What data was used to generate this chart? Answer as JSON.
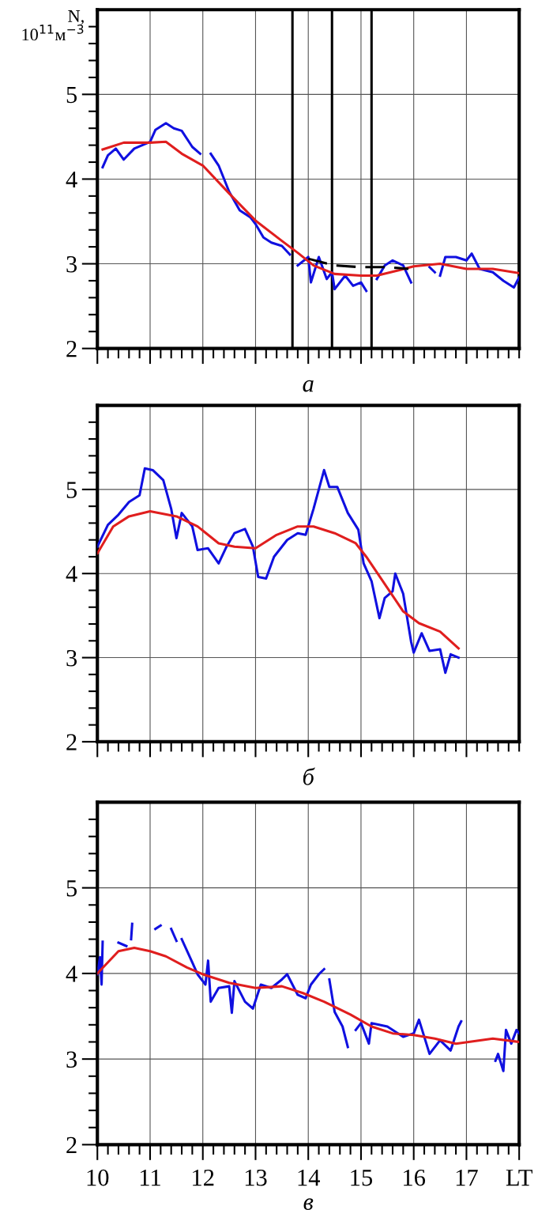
{
  "chart_data": [
    {
      "type": "line",
      "ylabel": "N,\n10$^{11}$м$^{−3}$",
      "xlabel": "а",
      "xlim": [
        10,
        18
      ],
      "ylim": [
        2,
        6
      ],
      "grid": true,
      "tick_labels": "y",
      "xticks": [
        10,
        {
          "value": 10.2,
          "label": null
        },
        {
          "value": 10.4,
          "label": null
        },
        {
          "value": 10.6,
          "label": null
        },
        {
          "value": 10.8,
          "label": null
        },
        11,
        {
          "value": 11.2,
          "label": null
        },
        {
          "value": 11.4,
          "label": null
        },
        {
          "value": 11.6,
          "label": null
        },
        {
          "value": 11.8,
          "label": null
        },
        12,
        {
          "value": 12.2,
          "label": null
        },
        {
          "value": 12.4,
          "label": null
        },
        {
          "value": 12.6,
          "label": null
        },
        {
          "value": 12.8,
          "label": null
        },
        13,
        {
          "value": 13.2,
          "label": null
        },
        {
          "value": 13.4,
          "label": null
        },
        {
          "value": 13.6,
          "label": null
        },
        {
          "value": 13.8,
          "label": null
        },
        14,
        {
          "value": 14.2,
          "label": null
        },
        {
          "value": 14.4,
          "label": null
        },
        {
          "value": 14.6,
          "label": null
        },
        {
          "value": 14.8,
          "label": null
        },
        15,
        {
          "value": 15.2,
          "label": null
        },
        {
          "value": 15.4,
          "label": null
        },
        {
          "value": 15.6,
          "label": null
        },
        {
          "value": 15.8,
          "label": null
        },
        16,
        {
          "value": 16.2,
          "label": null
        },
        {
          "value": 16.4,
          "label": null
        },
        {
          "value": 16.6,
          "label": null
        },
        {
          "value": 16.8,
          "label": null
        },
        17,
        {
          "value": 17.2,
          "label": null
        },
        {
          "value": 17.4,
          "label": null
        },
        {
          "value": 17.6,
          "label": null
        },
        {
          "value": 17.8,
          "label": null
        },
        {
          "value": 18,
          "label": null
        }
      ],
      "yticks": [
        2,
        {
          "value": 2.2,
          "label": null
        },
        {
          "value": 2.4,
          "label": null
        },
        {
          "value": 2.6,
          "label": null
        },
        {
          "value": 2.8,
          "label": null
        },
        3,
        {
          "value": 3.2,
          "label": null
        },
        {
          "value": 3.4,
          "label": null
        },
        {
          "value": 3.6,
          "label": null
        },
        {
          "value": 3.8,
          "label": null
        },
        4,
        {
          "value": 4.2,
          "label": null
        },
        {
          "value": 4.4,
          "label": null
        },
        {
          "value": 4.6,
          "label": null
        },
        {
          "value": 4.8,
          "label": null
        },
        5,
        {
          "value": 5.2,
          "label": null
        },
        {
          "value": 5.4,
          "label": null
        },
        {
          "value": 5.6,
          "label": null
        },
        {
          "value": 5.8,
          "label": null
        }
      ],
      "ref_lines": [
        {
          "axis": "x",
          "value": 13.7,
          "color": "#000000"
        },
        {
          "axis": "x",
          "value": 14.45,
          "color": "#000000"
        },
        {
          "axis": "x",
          "value": 15.2,
          "color": "#000000"
        }
      ],
      "series": [
        {
          "color": "#1010e0",
          "x": [
            10.1,
            10.2,
            10.35,
            10.5,
            10.7,
            10.85,
            11.0,
            11.1,
            11.3,
            11.45,
            11.6,
            11.8,
            11.95,
            12.05,
            12.15,
            12.3,
            12.5,
            12.7,
            12.9,
            13.0,
            13.15,
            13.3,
            13.5,
            13.65,
            13.72,
            13.8,
            14.0,
            14.05,
            14.2,
            14.35,
            14.45,
            14.5,
            14.7,
            14.85,
            15.0,
            15.1,
            15.2,
            15.3,
            15.45,
            15.6,
            15.8,
            15.95,
            16.1,
            16.3,
            16.4,
            16.45,
            16.5,
            16.6,
            16.8,
            17.0,
            17.1,
            17.25,
            17.5,
            17.7,
            17.9,
            18.0
          ],
          "values": [
            4.14,
            4.28,
            4.36,
            4.23,
            4.36,
            4.4,
            4.44,
            4.58,
            4.66,
            4.6,
            4.57,
            4.38,
            4.3,
            null,
            4.3,
            4.16,
            3.85,
            3.63,
            3.55,
            3.47,
            3.31,
            3.25,
            3.21,
            3.11,
            null,
            2.98,
            3.08,
            2.78,
            3.08,
            2.82,
            2.9,
            2.7,
            2.86,
            2.74,
            2.78,
            2.68,
            null,
            2.82,
            2.98,
            3.04,
            2.98,
            2.78,
            null,
            2.96,
            2.9,
            null,
            2.86,
            3.08,
            3.08,
            3.04,
            3.12,
            2.94,
            2.9,
            2.8,
            2.72,
            2.84
          ]
        },
        {
          "color": "#e01e1e",
          "x": [
            10.1,
            10.5,
            11.0,
            11.3,
            11.6,
            12.0,
            12.5,
            13.0,
            13.5,
            13.8,
            14.1,
            14.5,
            15.0,
            15.3,
            15.7,
            16.0,
            16.5,
            17.0,
            17.5,
            18.0
          ],
          "values": [
            4.35,
            4.43,
            4.43,
            4.44,
            4.3,
            4.16,
            3.83,
            3.51,
            3.27,
            3.13,
            2.98,
            2.88,
            2.86,
            2.86,
            2.92,
            2.97,
            3.0,
            2.94,
            2.94,
            2.89
          ]
        },
        {
          "color": "#000000",
          "line_style": "dashed",
          "x": [
            14.0,
            14.5,
            15.0,
            15.5,
            15.9
          ],
          "values": [
            3.06,
            2.98,
            2.96,
            2.96,
            2.94
          ]
        }
      ]
    },
    {
      "type": "line",
      "xlabel": "б",
      "xlim": [
        10,
        18
      ],
      "ylim": [
        2,
        6
      ],
      "grid": true,
      "tick_labels": "y",
      "xticks": [
        10,
        {
          "value": 10.2,
          "label": null
        },
        {
          "value": 10.4,
          "label": null
        },
        {
          "value": 10.6,
          "label": null
        },
        {
          "value": 10.8,
          "label": null
        },
        11,
        {
          "value": 11.2,
          "label": null
        },
        {
          "value": 11.4,
          "label": null
        },
        {
          "value": 11.6,
          "label": null
        },
        {
          "value": 11.8,
          "label": null
        },
        12,
        {
          "value": 12.2,
          "label": null
        },
        {
          "value": 12.4,
          "label": null
        },
        {
          "value": 12.6,
          "label": null
        },
        {
          "value": 12.8,
          "label": null
        },
        13,
        {
          "value": 13.2,
          "label": null
        },
        {
          "value": 13.4,
          "label": null
        },
        {
          "value": 13.6,
          "label": null
        },
        {
          "value": 13.8,
          "label": null
        },
        14,
        {
          "value": 14.2,
          "label": null
        },
        {
          "value": 14.4,
          "label": null
        },
        {
          "value": 14.6,
          "label": null
        },
        {
          "value": 14.8,
          "label": null
        },
        15,
        {
          "value": 15.2,
          "label": null
        },
        {
          "value": 15.4,
          "label": null
        },
        {
          "value": 15.6,
          "label": null
        },
        {
          "value": 15.8,
          "label": null
        },
        16,
        {
          "value": 16.2,
          "label": null
        },
        {
          "value": 16.4,
          "label": null
        },
        {
          "value": 16.6,
          "label": null
        },
        {
          "value": 16.8,
          "label": null
        },
        17,
        {
          "value": 17.2,
          "label": null
        },
        {
          "value": 17.4,
          "label": null
        },
        {
          "value": 17.6,
          "label": null
        },
        {
          "value": 17.8,
          "label": null
        },
        {
          "value": 18,
          "label": null
        }
      ],
      "yticks": [
        2,
        {
          "value": 2.2,
          "label": null
        },
        {
          "value": 2.4,
          "label": null
        },
        {
          "value": 2.6,
          "label": null
        },
        {
          "value": 2.8,
          "label": null
        },
        3,
        {
          "value": 3.2,
          "label": null
        },
        {
          "value": 3.4,
          "label": null
        },
        {
          "value": 3.6,
          "label": null
        },
        {
          "value": 3.8,
          "label": null
        },
        4,
        {
          "value": 4.2,
          "label": null
        },
        {
          "value": 4.4,
          "label": null
        },
        {
          "value": 4.6,
          "label": null
        },
        {
          "value": 4.8,
          "label": null
        },
        5,
        {
          "value": 5.2,
          "label": null
        },
        {
          "value": 5.4,
          "label": null
        },
        {
          "value": 5.6,
          "label": null
        },
        {
          "value": 5.8,
          "label": null
        }
      ],
      "series": [
        {
          "color": "#1010e0",
          "x": [
            10.0,
            10.2,
            10.4,
            10.6,
            10.8,
            10.9,
            11.05,
            11.25,
            11.4,
            11.5,
            11.6,
            11.8,
            11.9,
            12.1,
            12.3,
            12.45,
            12.6,
            12.8,
            12.95,
            13.05,
            13.2,
            13.35,
            13.6,
            13.8,
            13.95,
            14.1,
            14.3,
            14.4,
            14.55,
            14.75,
            14.95,
            15.05,
            15.2,
            15.35,
            15.45,
            15.6,
            15.65,
            15.8,
            15.95,
            16.0,
            16.15,
            16.3,
            16.5,
            16.6,
            16.7,
            16.85
          ],
          "values": [
            4.32,
            4.58,
            4.7,
            4.85,
            4.93,
            5.25,
            5.23,
            5.11,
            4.77,
            4.42,
            4.72,
            4.56,
            4.28,
            4.3,
            4.12,
            4.32,
            4.48,
            4.53,
            4.32,
            3.96,
            3.94,
            4.2,
            4.4,
            4.48,
            4.46,
            4.77,
            5.23,
            5.03,
            5.03,
            4.72,
            4.52,
            4.12,
            3.91,
            3.47,
            3.71,
            3.79,
            4.0,
            3.76,
            3.19,
            3.06,
            3.29,
            3.08,
            3.1,
            2.82,
            3.04,
            3.0
          ]
        },
        {
          "color": "#e01e1e",
          "x": [
            10.0,
            10.3,
            10.6,
            11.0,
            11.5,
            11.9,
            12.3,
            12.6,
            13.0,
            13.4,
            13.8,
            14.1,
            14.5,
            14.9,
            15.1,
            15.5,
            15.8,
            16.1,
            16.5,
            16.85
          ],
          "values": [
            4.24,
            4.56,
            4.68,
            4.74,
            4.68,
            4.56,
            4.36,
            4.32,
            4.3,
            4.46,
            4.56,
            4.56,
            4.48,
            4.36,
            4.2,
            3.83,
            3.55,
            3.41,
            3.31,
            3.11
          ]
        }
      ]
    },
    {
      "type": "line",
      "xlabel": "в",
      "xlim": [
        10,
        18
      ],
      "ylim": [
        2,
        6
      ],
      "grid": true,
      "xticks": [
        10,
        {
          "value": 10.2,
          "label": null
        },
        {
          "value": 10.4,
          "label": null
        },
        {
          "value": 10.6,
          "label": null
        },
        {
          "value": 10.8,
          "label": null
        },
        11,
        {
          "value": 11.2,
          "label": null
        },
        {
          "value": 11.4,
          "label": null
        },
        {
          "value": 11.6,
          "label": null
        },
        {
          "value": 11.8,
          "label": null
        },
        12,
        {
          "value": 12.2,
          "label": null
        },
        {
          "value": 12.4,
          "label": null
        },
        {
          "value": 12.6,
          "label": null
        },
        {
          "value": 12.8,
          "label": null
        },
        13,
        {
          "value": 13.2,
          "label": null
        },
        {
          "value": 13.4,
          "label": null
        },
        {
          "value": 13.6,
          "label": null
        },
        {
          "value": 13.8,
          "label": null
        },
        14,
        {
          "value": 14.2,
          "label": null
        },
        {
          "value": 14.4,
          "label": null
        },
        {
          "value": 14.6,
          "label": null
        },
        {
          "value": 14.8,
          "label": null
        },
        15,
        {
          "value": 15.2,
          "label": null
        },
        {
          "value": 15.4,
          "label": null
        },
        {
          "value": 15.6,
          "label": null
        },
        {
          "value": 15.8,
          "label": null
        },
        16,
        {
          "value": 16.2,
          "label": null
        },
        {
          "value": 16.4,
          "label": null
        },
        {
          "value": 16.6,
          "label": null
        },
        {
          "value": 16.8,
          "label": null
        },
        17,
        {
          "value": 17.2,
          "label": null
        },
        {
          "value": 17.4,
          "label": null
        },
        {
          "value": 17.6,
          "label": null
        },
        {
          "value": 17.8,
          "label": null
        },
        {
          "value": 18,
          "label": "LT"
        }
      ],
      "yticks": [
        2,
        {
          "value": 2.2,
          "label": null
        },
        {
          "value": 2.4,
          "label": null
        },
        {
          "value": 2.6,
          "label": null
        },
        {
          "value": 2.8,
          "label": null
        },
        3,
        {
          "value": 3.2,
          "label": null
        },
        {
          "value": 3.4,
          "label": null
        },
        {
          "value": 3.6,
          "label": null
        },
        {
          "value": 3.8,
          "label": null
        },
        4,
        {
          "value": 4.2,
          "label": null
        },
        {
          "value": 4.4,
          "label": null
        },
        {
          "value": 4.6,
          "label": null
        },
        {
          "value": 4.8,
          "label": null
        },
        5,
        {
          "value": 5.2,
          "label": null
        },
        {
          "value": 5.4,
          "label": null
        },
        {
          "value": 5.6,
          "label": null
        },
        {
          "value": 5.8,
          "label": null
        }
      ],
      "series": [
        {
          "color": "#1010e0",
          "x": [
            10.0,
            10.05,
            10.08,
            10.1,
            10.25,
            10.4,
            10.55,
            10.6,
            10.64,
            10.66,
            10.9,
            11.1,
            11.2,
            11.3,
            11.4,
            11.5,
            11.55,
            11.6,
            11.8,
            11.9,
            12.05,
            12.1,
            12.15,
            12.3,
            12.5,
            12.55,
            12.6,
            12.8,
            12.95,
            13.1,
            13.3,
            13.5,
            13.6,
            13.8,
            13.95,
            14.05,
            14.2,
            14.3,
            14.35,
            14.4,
            14.5,
            14.65,
            14.75,
            14.82,
            14.9,
            15.0,
            15.15,
            15.2,
            15.5,
            15.8,
            16.0,
            16.1,
            16.3,
            16.5,
            16.7,
            16.85,
            16.9,
            17.2,
            17.55,
            17.6,
            17.7,
            17.75,
            17.85,
            17.95,
            18.0
          ],
          "values": [
            3.99,
            4.19,
            3.87,
            4.37,
            null,
            4.36,
            4.32,
            null,
            4.4,
            4.58,
            null,
            4.52,
            4.56,
            null,
            4.52,
            4.38,
            null,
            4.4,
            4.13,
            3.99,
            3.87,
            4.15,
            3.67,
            3.83,
            3.85,
            3.54,
            3.91,
            3.67,
            3.59,
            3.87,
            3.83,
            3.93,
            3.99,
            3.75,
            3.71,
            3.87,
            3.99,
            4.05,
            null,
            3.93,
            3.55,
            3.38,
            3.14,
            null,
            3.34,
            3.42,
            3.18,
            3.42,
            3.38,
            3.26,
            3.3,
            3.46,
            3.06,
            3.22,
            3.1,
            3.38,
            3.44,
            null,
            2.98,
            3.06,
            2.86,
            3.34,
            3.18,
            3.34,
            3.3
          ]
        },
        {
          "color": "#e01e1e",
          "x": [
            10.0,
            10.4,
            10.7,
            11.0,
            11.3,
            11.7,
            12.0,
            12.5,
            13.0,
            13.5,
            13.9,
            14.3,
            14.8,
            15.2,
            15.6,
            16.0,
            16.4,
            16.8,
            17.5,
            18.0
          ],
          "values": [
            4.0,
            4.26,
            4.3,
            4.26,
            4.2,
            4.07,
            3.99,
            3.89,
            3.83,
            3.85,
            3.77,
            3.67,
            3.52,
            3.38,
            3.3,
            3.28,
            3.24,
            3.18,
            3.24,
            3.2
          ]
        }
      ]
    }
  ]
}
